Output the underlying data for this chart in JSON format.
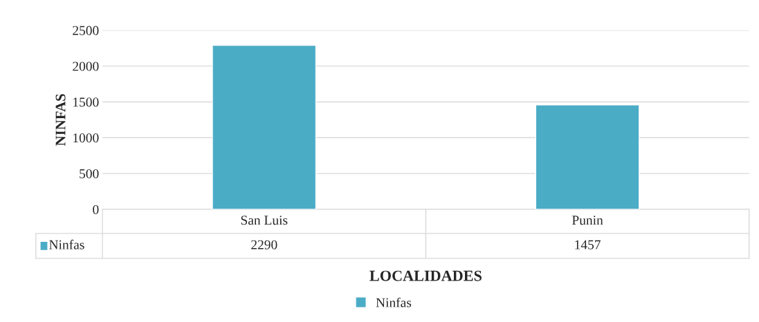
{
  "chart_data": {
    "type": "bar",
    "xlabel": "LOCALIDADES",
    "ylabel": "NINFAS",
    "categories": [
      "San Luis",
      "Punin"
    ],
    "series": [
      {
        "name": "Ninfas",
        "color": "#4bacc6",
        "values": [
          2290,
          1457
        ]
      }
    ],
    "ylim": [
      0,
      2500
    ],
    "yticks": [
      0,
      500,
      1000,
      1500,
      2000,
      2500
    ],
    "grid": "y",
    "legend": "bottom",
    "data_labels": true
  }
}
